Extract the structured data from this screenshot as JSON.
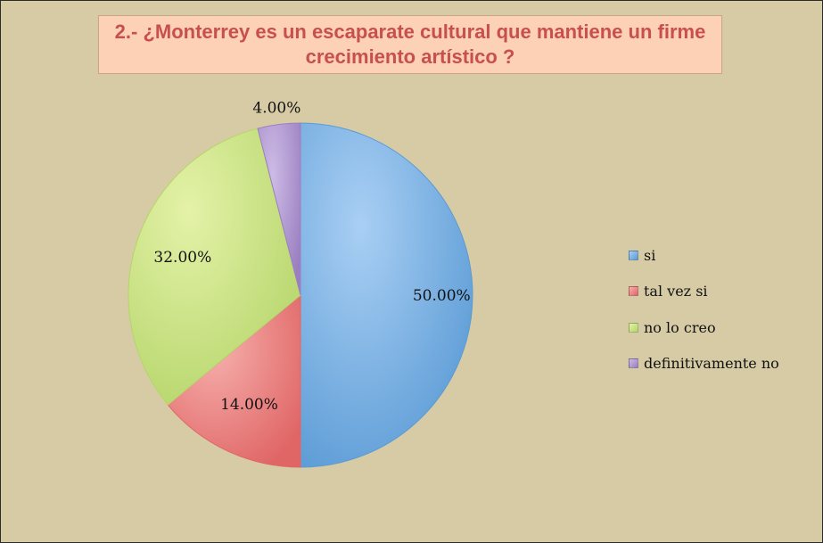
{
  "chart_data": {
    "type": "pie",
    "title": "2.- ¿Monterrey es un escaparate cultural que mantiene un firme crecimiento artístico ?",
    "categories": [
      "si",
      "tal vez si",
      "no lo creo",
      "definitivamente no"
    ],
    "values": [
      50.0,
      14.0,
      32.0,
      4.0
    ],
    "data_labels": [
      "50.00%",
      "14.00%",
      "32.00%",
      "4.00%"
    ],
    "colors": [
      "#5b9bd5",
      "#e06666",
      "#b5d56a",
      "#9b7fc0"
    ],
    "colors_light": [
      "#a9cff4",
      "#f6b0ad",
      "#e4f2a8",
      "#cdbbe6"
    ],
    "legend_position": "right"
  }
}
